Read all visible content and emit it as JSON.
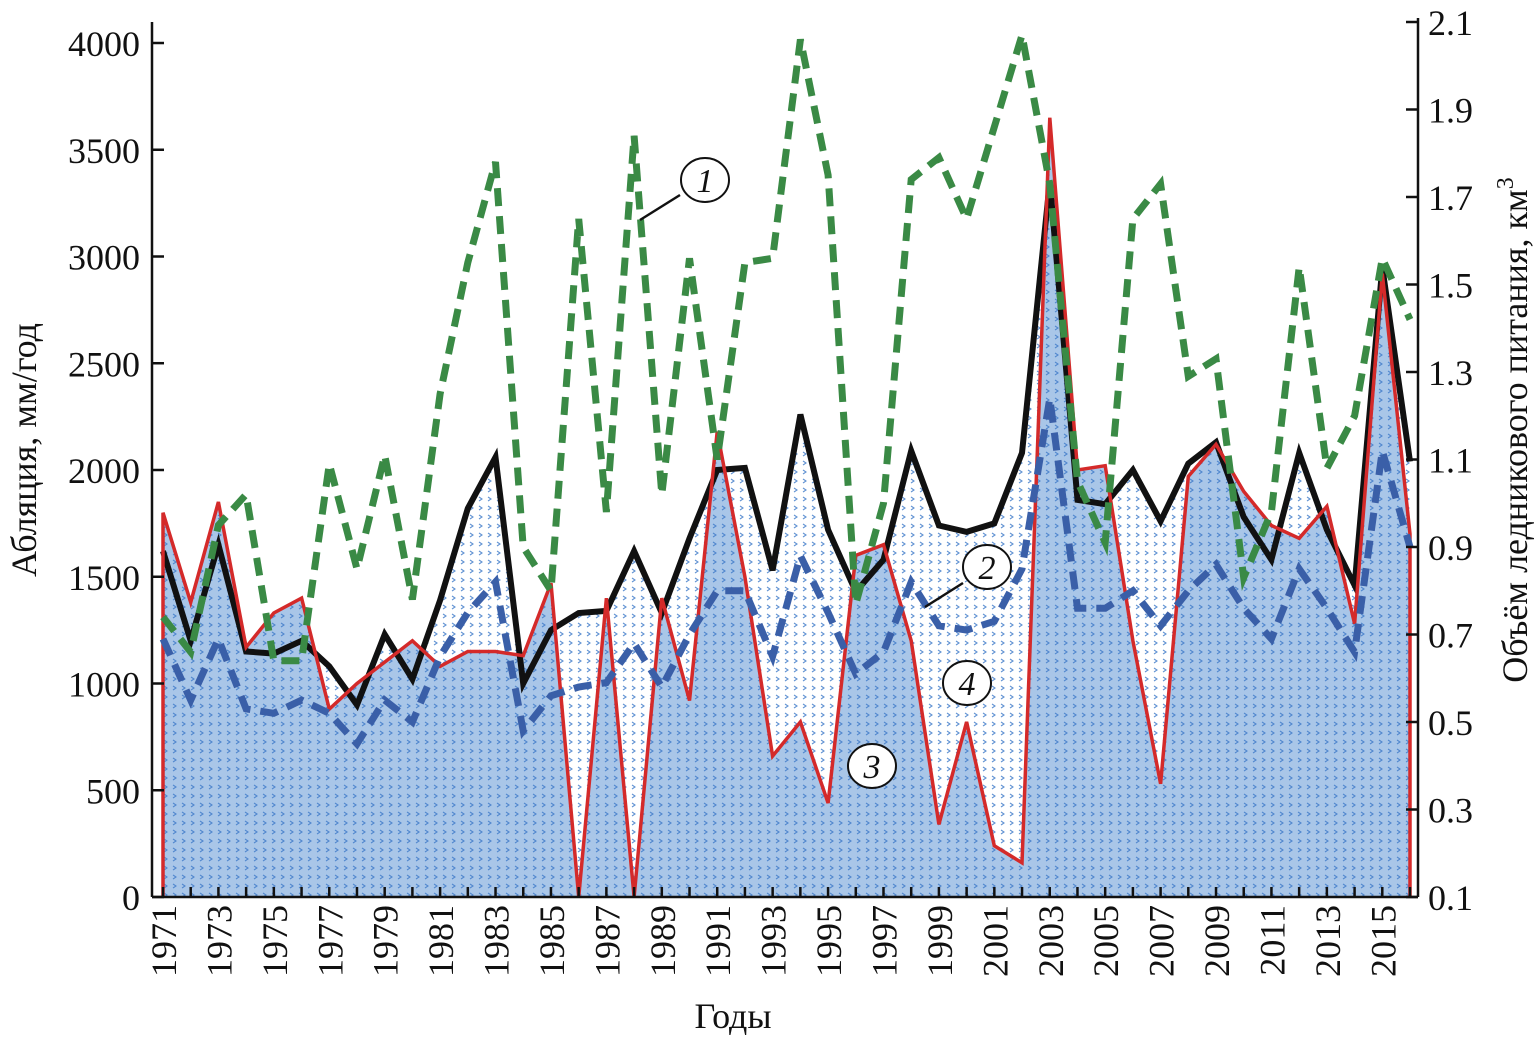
{
  "chart_data": {
    "type": "line",
    "xlabel": "Годы",
    "ylabel_left": "Абляция, мм/год",
    "ylabel_right": "Объём ледникового питания, км",
    "ylabel_right_sup": "3",
    "ylim_left": [
      0,
      4000
    ],
    "ylim_right": [
      0.1,
      2.1
    ],
    "left_ticks": [
      "0",
      "500",
      "1000",
      "1500",
      "2000",
      "2500",
      "3000",
      "3500",
      "4000"
    ],
    "right_ticks": [
      "0.1",
      "0.3",
      "0.5",
      "0.7",
      "0.9",
      "1.1",
      "1.3",
      "1.5",
      "1.7",
      "1.9",
      "2.1"
    ],
    "x_tick_labels": [
      "1971",
      "1973",
      "1975",
      "1977",
      "1979",
      "1981",
      "1983",
      "1985",
      "1987",
      "1989",
      "1991",
      "1993",
      "1995",
      "1997",
      "1999",
      "2001",
      "2003",
      "2005",
      "2007",
      "2009",
      "2011",
      "2013",
      "2015"
    ],
    "x": [
      1971,
      1972,
      1973,
      1974,
      1975,
      1976,
      1977,
      1978,
      1979,
      1980,
      1981,
      1982,
      1983,
      1984,
      1985,
      1986,
      1987,
      1988,
      1989,
      1990,
      1991,
      1992,
      1993,
      1994,
      1995,
      1996,
      1997,
      1998,
      1999,
      2000,
      2001,
      2002,
      2003,
      2004,
      2005,
      2006,
      2007,
      2008,
      2009,
      2010,
      2011,
      2012,
      2013,
      2014,
      2015,
      2016
    ],
    "series": [
      {
        "label": "1",
        "axis": "right",
        "style": "dashed",
        "color": "#3a8a45",
        "values": [
          0.74,
          0.66,
          0.95,
          1.02,
          0.64,
          0.64,
          1.09,
          0.85,
          1.11,
          0.78,
          1.25,
          1.55,
          1.78,
          0.9,
          0.8,
          1.65,
          0.98,
          1.84,
          1.02,
          1.56,
          1.1,
          1.55,
          1.56,
          2.06,
          1.75,
          0.77,
          1.0,
          1.74,
          1.79,
          1.65,
          1.86,
          2.07,
          1.73,
          1.05,
          0.91,
          1.65,
          1.73,
          1.29,
          1.33,
          0.83,
          0.98,
          1.54,
          1.08,
          1.2,
          1.56,
          1.42
        ]
      },
      {
        "label": "2",
        "axis": "right",
        "style": "dashed",
        "color": "#3a5fa8",
        "values": [
          0.69,
          0.55,
          0.69,
          0.53,
          0.52,
          0.55,
          0.52,
          0.45,
          0.55,
          0.5,
          0.65,
          0.75,
          0.82,
          0.48,
          0.56,
          0.58,
          0.59,
          0.68,
          0.58,
          0.7,
          0.8,
          0.8,
          0.65,
          0.88,
          0.75,
          0.61,
          0.66,
          0.82,
          0.72,
          0.71,
          0.73,
          0.85,
          1.24,
          0.76,
          0.76,
          0.8,
          0.72,
          0.8,
          0.86,
          0.76,
          0.69,
          0.85,
          0.76,
          0.66,
          1.12,
          0.9
        ]
      },
      {
        "label": "3",
        "axis": "left",
        "style": "solid",
        "color": "#d42a2a",
        "fill": "#a9c6e8",
        "values": [
          1800,
          1380,
          1850,
          1170,
          1330,
          1400,
          880,
          1000,
          1100,
          1200,
          1080,
          1150,
          1150,
          1130,
          1470,
          0,
          1400,
          0,
          1400,
          920,
          2180,
          1500,
          660,
          820,
          440,
          1600,
          1650,
          1200,
          340,
          820,
          240,
          160,
          3650,
          2000,
          2020,
          1200,
          530,
          1970,
          2120,
          1900,
          1740,
          1680,
          1830,
          1280,
          2920,
          1700
        ]
      },
      {
        "label": "4",
        "axis": "left",
        "style": "solid",
        "color": "#111111",
        "fill": "#ffffff",
        "values": [
          1620,
          1200,
          1650,
          1150,
          1140,
          1200,
          1080,
          900,
          1230,
          1020,
          1390,
          1820,
          2060,
          1000,
          1250,
          1330,
          1340,
          1620,
          1330,
          1680,
          2000,
          2010,
          1530,
          2260,
          1720,
          1430,
          1580,
          2090,
          1740,
          1710,
          1750,
          2080,
          3350,
          1860,
          1840,
          2000,
          1760,
          2030,
          2130,
          1780,
          1580,
          2080,
          1720,
          1460,
          2950,
          2040
        ]
      }
    ],
    "grid": false,
    "legend": "none"
  }
}
